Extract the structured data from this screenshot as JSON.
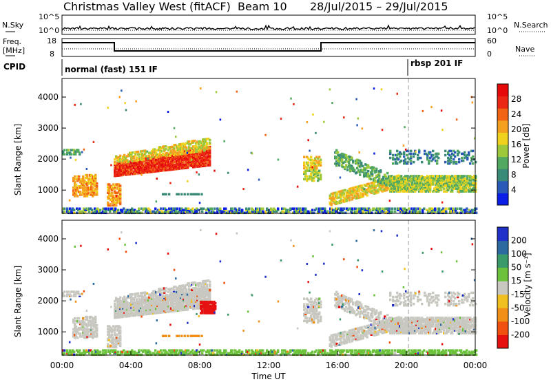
{
  "header": {
    "title": "Christmas Valley West (fitACF)",
    "beam": "Beam 10",
    "date_range": "28/Jul/2015 – 29/Jul/2015"
  },
  "panels": {
    "nsky": {
      "left_label": "N.Sky",
      "right_label": "N.Search",
      "left_ticks": [
        "10^5",
        "10^0"
      ],
      "right_ticks": [
        "10^5",
        "10^0"
      ]
    },
    "freq": {
      "left_label_1": "Freq.",
      "left_label_2": "[MHz]",
      "right_label": "Nave",
      "left_ticks": [
        "18",
        "8"
      ],
      "right_ticks": [
        "60",
        "0"
      ]
    },
    "cpid": {
      "label": "CPID",
      "modes": [
        "normal (fast) 151 IF",
        "rbsp 201 IF"
      ]
    }
  },
  "chart_data": [
    {
      "type": "heatmap",
      "name": "power",
      "ylabel": "Slant Range [km]",
      "yticks": [
        "1000",
        "2000",
        "3000",
        "4000"
      ],
      "ylim": [
        250,
        4600
      ],
      "colorbar": {
        "label": "Power [dB]",
        "ticks": [
          "4",
          "8",
          "12",
          "16",
          "20",
          "24",
          "28"
        ],
        "range": [
          0,
          32
        ],
        "colors": [
          "#0a1ee6",
          "#2a5ab8",
          "#3a8a78",
          "#52a860",
          "#9ec83c",
          "#f0d21e",
          "#f5a01e",
          "#f06414",
          "#eb2814",
          "#e60a0a"
        ]
      }
    },
    {
      "type": "heatmap",
      "name": "velocity",
      "ylabel": "Slant Range [km]",
      "yticks": [
        "1000",
        "2000",
        "3000",
        "4000"
      ],
      "ylim": [
        250,
        4600
      ],
      "colorbar": {
        "label": "Velocity [m s⁻¹]",
        "ticks": [
          "200",
          "100",
          "50",
          "15",
          "-15",
          "-50",
          "-100",
          "-200"
        ],
        "colors": [
          "#2030c8",
          "#2c6aa0",
          "#3a9a6a",
          "#6cc23a",
          "#c8c8c0",
          "#f0c020",
          "#f09018",
          "#f05010",
          "#e61010"
        ]
      }
    }
  ],
  "xaxis": {
    "label": "Time UT",
    "ticks": [
      "00:00",
      "04:00",
      "08:00",
      "12:00",
      "16:00",
      "20:00",
      "00:00"
    ],
    "xlim": [
      0,
      24
    ]
  }
}
